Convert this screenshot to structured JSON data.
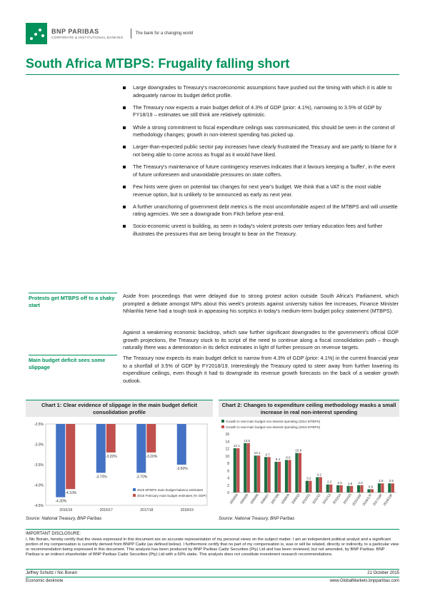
{
  "header": {
    "brand_name": "BNP PARIBAS",
    "brand_sub": "CORPORATE & INSTITUTIONAL BANKING",
    "tagline": "The bank for a changing world",
    "brand_color": "#00915a",
    "logo_icon": "stars-logo-icon"
  },
  "title": "South Africa MTBPS: Frugality falling short",
  "bullets": [
    "Large downgrades to Treasury's macroeconomic assumptions have pushed out the timing with which it is able to adequately narrow its budget deficit profile.",
    "The Treasury now expects a main budget deficit of 4.3% of GDP (prior: 4.1%), narrowing to 3.5% of GDP by FY18/19 – estimates we still think are relatively optimistic.",
    "While a strong commitment to fiscal expenditure ceilings was communicated, this should be seen in the context of methodology changes; growth in non-interest spending has picked up.",
    "Larger-than-expected public sector pay increases have clearly frustrated the Treasury and are partly to blame for it not being able to come across as frugal as it would have liked.",
    "The Treasury's maintenance of future contingency reserves indicates that it favours keeping a 'buffer', in the event of future unforeseen and unavoidable pressures on state coffers.",
    "Few hints were given on potential tax changes for next year's budget. We think that a VAT is the most viable revenue option, but is unlikely to be announced as early as next year.",
    "A further unanchoring of government debt metrics is the most uncomfortable aspect of the MTBPS and will unsettle rating agencies. We see a downgrade from Fitch before year-end.",
    "Socio-economic unrest is building, as seen in today's violent protests over tertiary education fees and further illustrates the pressures that are being brought to bear on the Treasury."
  ],
  "sections": [
    {
      "heading": "Protests get MTBPS off to a shaky start",
      "paragraphs": [
        "Aside from proceedings that were delayed due to strong protest action outside South Africa's Parliament, which prompted a debate amongst MPs about this week's protests against university tuition fee increases, Finance Minister Nhlanhla Nene had a tough task in appeasing his sceptics in today's medium-term budget policy statement (MTBPS).",
        "Against a weakening economic backdrop, which saw further significant downgrades to the government's official GDP growth projections, the Treasury stuck to its script of the need to continue along a fiscal consolidation path – though naturally there was a deterioration in its deficit estimates in light of further pressure on revenue targets."
      ]
    },
    {
      "heading": "Main budget deficit sees some slippage",
      "paragraphs": [
        "The Treasury now expects its main budget deficit to narrow from 4.3% of GDP (prior: 4.1%) in the current financial year to a shortfall of 3.5% of GDP by FY2018/19. Interestingly the Treasury opted to steer away from further lowering its expenditure ceilings, even though it had to downgrade its revenue growth forecasts on the back of a weaker growth outlook."
      ]
    }
  ],
  "chart_data": [
    {
      "type": "bar",
      "title": "Chart 1: Clear evidence of slippage in the main budget deficit consolidation profile",
      "categories": [
        "2015/16",
        "2016/17",
        "2017/18",
        "2018/19"
      ],
      "series": [
        {
          "name": "2015 MTBPS main budget balance estimates",
          "values": [
            -4.3,
            -3.7,
            -3.7,
            -3.5
          ],
          "labels": [
            "-4.30%",
            "-3.70%",
            "-3.70%",
            "-3.50%"
          ],
          "color": "#4472c4"
        },
        {
          "name": "2015 February main budget estimates (% GDP)",
          "values": [
            -4.1,
            -3.2,
            -3.2,
            null
          ],
          "labels": [
            "-4.10%",
            "-3.20%",
            "-3.20%",
            ""
          ],
          "color": "#c0504d"
        }
      ],
      "yticks": [
        "-2.5%",
        "-3.0%",
        "-3.5%",
        "-4.0%",
        "-4.5%"
      ],
      "ylim": [
        -4.5,
        -2.5
      ],
      "legend": "bottom-right",
      "source": "Source: National Treasury, BNP Paribas"
    },
    {
      "type": "bar",
      "title": "Chart 2: Changes to expenditure ceiling methodology masks a small increase in real non-interest spending",
      "categories": [
        "2003/04",
        "2004/05",
        "2005/06",
        "2006/07",
        "2007/08",
        "2008/09",
        "2009/10",
        "2010/11",
        "2011/12",
        "2012/13",
        "2013/14",
        "2014/15",
        "2015/16F",
        "2016/17F",
        "2017/18F",
        "2018/19F"
      ],
      "series": [
        {
          "name": "Growth in real main budget non-interest spending (2014 MTBPS)",
          "values": [
            12.1,
            13.5,
            10.1,
            9.7,
            8.4,
            8.9,
            10.8,
            3.2,
            4.2,
            2.2,
            2.0,
            1.8,
            2.0,
            0.9,
            2.5,
            2.5
          ],
          "color": "#1f6e43"
        },
        {
          "name": "Growth in real main budget non-interest spending (2015 MTBPS)",
          "values": [
            12.1,
            13.5,
            10.1,
            9.7,
            8.4,
            8.9,
            10.8,
            3.2,
            4.2,
            2.2,
            2.0,
            1.8,
            2.0,
            0.9,
            2.5,
            2.5
          ],
          "color": "#c0504d"
        }
      ],
      "value_labels": [
        "12.1",
        "13.5",
        "10.1",
        "9.7",
        "8.4",
        "8.9",
        "10.8",
        "3.2",
        "4.2",
        "2.2",
        "2.0",
        "1.8",
        "2.0",
        "0.9",
        "2.5",
        "2.5"
      ],
      "yticks": [
        "0",
        "2",
        "4",
        "6",
        "8",
        "10",
        "12",
        "14",
        "16"
      ],
      "ylim": [
        0,
        16
      ],
      "legend": "top-left",
      "source": "Source: National Treasury, BNP Paribas"
    }
  ],
  "disclosure": {
    "heading": "IMPORTANT DISCLOSURE:",
    "text": "I, Nic Borain, hereby certify that the views expressed in this document are an accurate representation of my personal views on the subject matter. I am an independent political analyst and a significant portion of my compensation is currently derived from BNPP Cadiz (as defined below). I furthermore certify that no part of my compensation is, was or will be related, directly or indirectly, to a particular view or recommendation being expressed in this document. This analysis has been produced by BNP Paribas Cadiz Securities (Pty) Ltd and has been reviewed, but not amended, by BNP Paribas. BNP Paribas is an indirect shareholder of BNP Paribas Cadiz Securities (Pty) Ltd with a 60% stake. This analysis does not constitute investment research recommendations."
  },
  "footer": {
    "authors": "Jeffrey Schultz / Nic Borain",
    "date": "21 October 2015",
    "publication": "Economic desknote",
    "website": "www.GlobalMarkets.bnpparibas.com"
  }
}
